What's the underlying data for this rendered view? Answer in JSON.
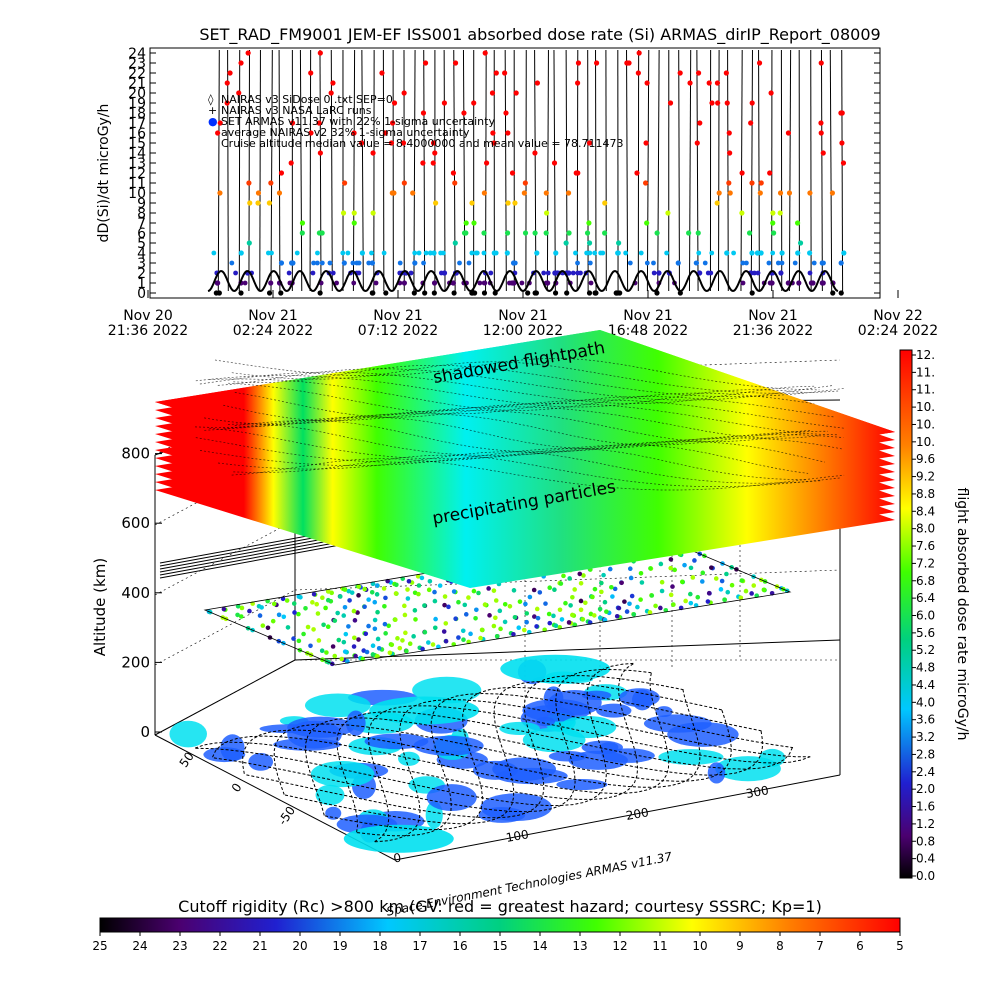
{
  "page": {
    "credit": "Space Environment Technologies ARMAS v11.37"
  },
  "chart_data": [
    {
      "type": "scatter",
      "title": "SET_RAD_FM9001  JEM-EF ISS001 absorbed dose rate (Si) ARMAS_dirIP_Report_08009",
      "ylabel": "dD(Si)/dt microGy/h",
      "ylim": [
        0,
        24
      ],
      "yticks": [
        0,
        1,
        2,
        3,
        4,
        5,
        6,
        7,
        8,
        9,
        10,
        11,
        12,
        13,
        14,
        15,
        16,
        17,
        18,
        19,
        20,
        21,
        22,
        23,
        24
      ],
      "xticks": [
        {
          "date": "Nov 20",
          "time": "21:36  2022"
        },
        {
          "date": "Nov 21",
          "time": "02:24  2022"
        },
        {
          "date": "Nov 21",
          "time": "07:12  2022"
        },
        {
          "date": "Nov 21",
          "time": "12:00  2022"
        },
        {
          "date": "Nov 21",
          "time": "16:48  2022"
        },
        {
          "date": "Nov 21",
          "time": "21:36  2022"
        },
        {
          "date": "Nov 22",
          "time": "02:24  2022"
        }
      ],
      "legend": [
        {
          "symbol": "◊",
          "text": "NAIRAS v3 SiDose  0 .txt SEP=0"
        },
        {
          "symbol": "+",
          "text": "NAIRAS v3 NASA LaRC runs"
        },
        {
          "symbol": "●",
          "text": "SET ARMAS v11.37 with 22% 1-sigma uncertainty"
        },
        {
          "symbol": "",
          "text": "average NAIRAS v2 32% 1-sigma uncertainty"
        },
        {
          "symbol": "",
          "text": "Cruise altitude median value = 8.4000000 and mean value = 78.711473"
        }
      ],
      "legend_position": "top-left",
      "nairas_baseline": {
        "min": 0.2,
        "max": 2.2,
        "oscillations": 24
      },
      "armas_sample_levels": [
        0,
        1,
        2,
        3,
        4,
        5,
        6,
        7,
        8,
        9,
        10,
        11,
        12,
        13,
        14,
        15,
        16,
        17,
        18,
        19,
        20,
        21,
        22,
        23,
        24
      ]
    },
    {
      "type": "scatter",
      "subtype": "3d-orbit-track",
      "zlabel": "Altitude (km)",
      "zticks": [
        0,
        200,
        400,
        600,
        800
      ],
      "latitude_ticks": [
        50,
        0,
        -50
      ],
      "longitude_ticks": [
        0,
        100,
        200,
        300
      ],
      "annotations": [
        "shadowed flightpath",
        "precipitating particles"
      ],
      "track_altitude_km": 420
    }
  ],
  "colorbars": {
    "dose": {
      "label": "flight absorbed dose rate microGy/h",
      "ticks": [
        "12.",
        "11.",
        "11.",
        "10.",
        "10.",
        "10.",
        "9.6",
        "9.2",
        "8.8",
        "8.4",
        "8.0",
        "7.6",
        "7.2",
        "6.8",
        "6.4",
        "6.0",
        "5.6",
        "5.2",
        "4.8",
        "4.4",
        "4.0",
        "3.6",
        "3.2",
        "2.8",
        "2.4",
        "2.0",
        "1.6",
        "1.2",
        "0.8",
        "0.4",
        "0.0"
      ],
      "range": [
        0,
        12
      ]
    },
    "cutoff": {
      "label": "Cutoff rigidity (Rc) >800 km (GV: red = greatest hazard; courtesy SSSRC; Kp=1)",
      "ticks": [
        "25",
        "24",
        "23",
        "22",
        "21",
        "20",
        "19",
        "18",
        "17",
        "16",
        "15",
        "14",
        "13",
        "12",
        "11",
        "10",
        "9",
        "8",
        "7",
        "6",
        "5"
      ],
      "range": [
        25,
        5
      ]
    }
  }
}
